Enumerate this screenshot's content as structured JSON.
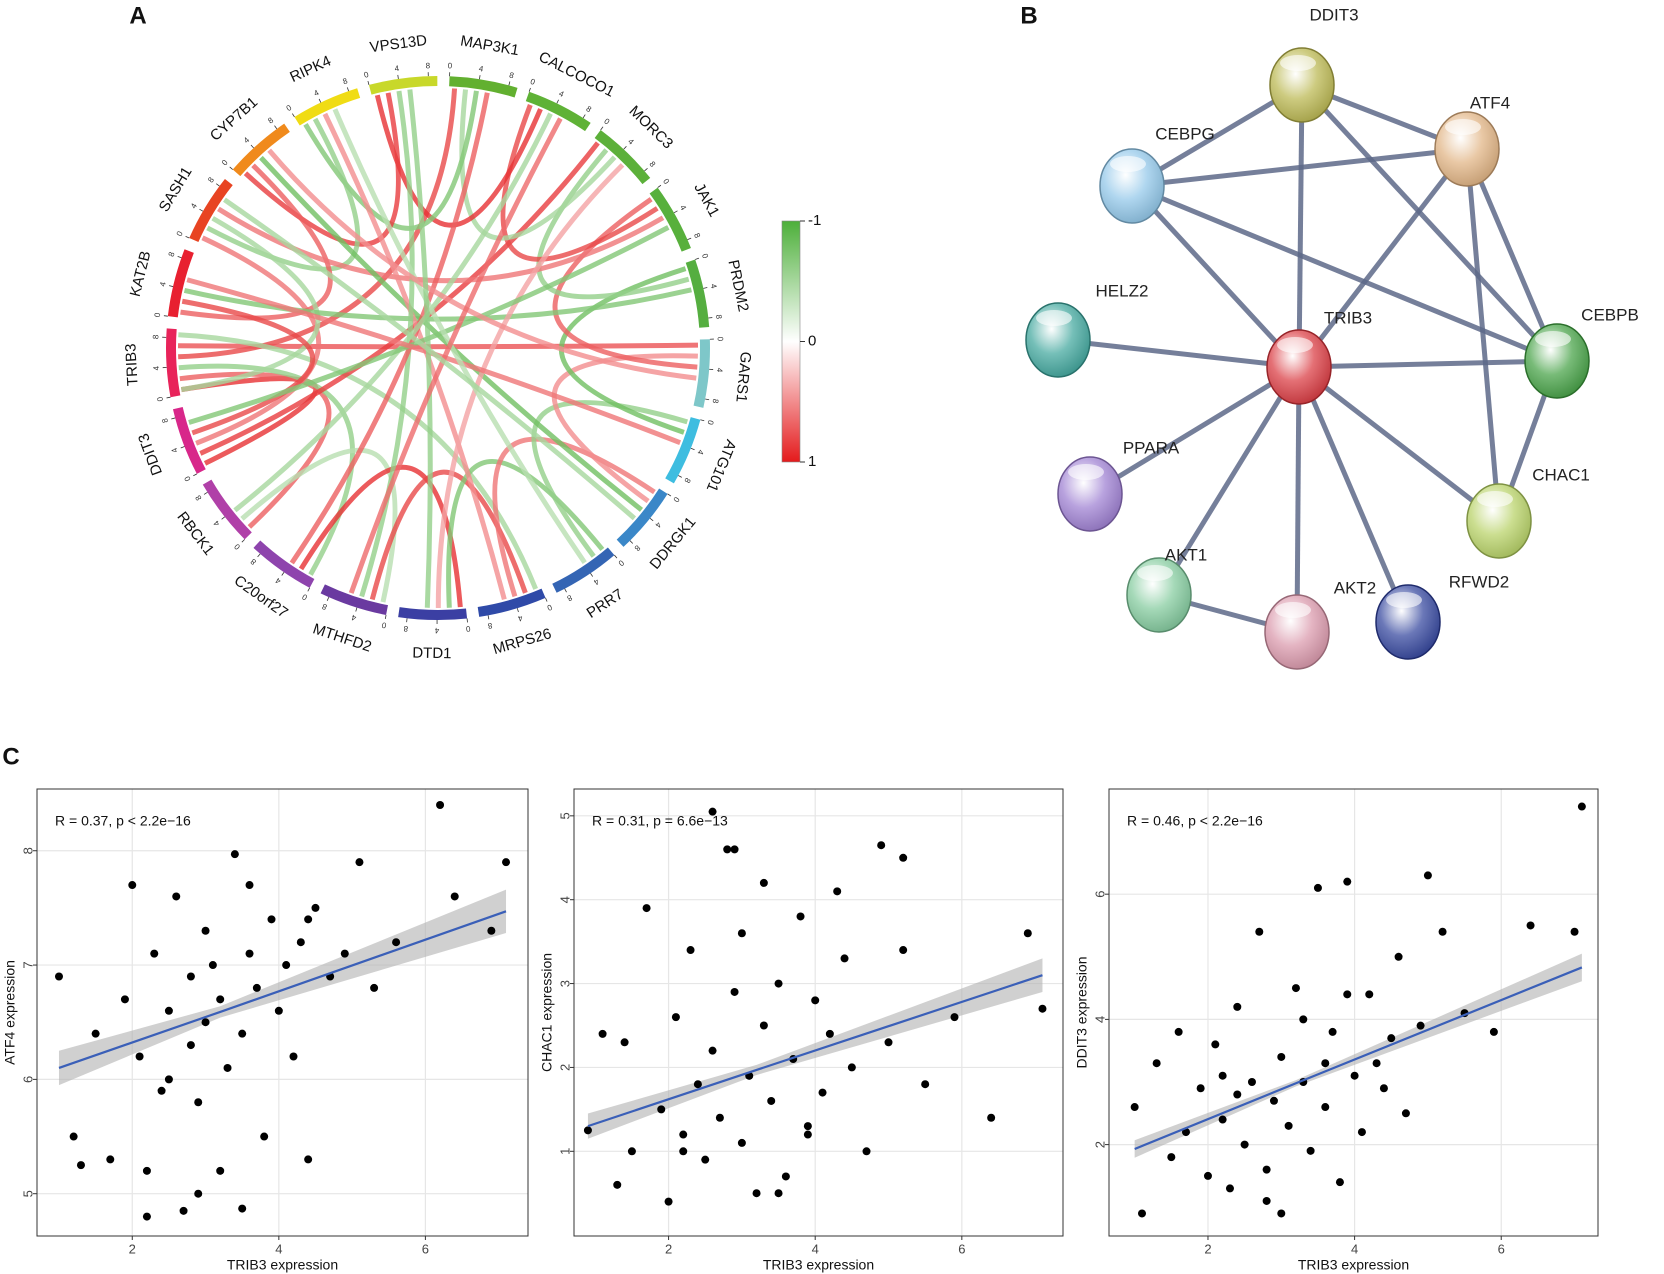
{
  "panel_labels": [
    "A",
    "B",
    "C"
  ],
  "chart_data": [
    {
      "type": "chord",
      "genes": [
        {
          "name": "MAP3K1",
          "color": "#62b030"
        },
        {
          "name": "CALCOCO1",
          "color": "#5fb236"
        },
        {
          "name": "MORC3",
          "color": "#5cb03a"
        },
        {
          "name": "JAK1",
          "color": "#58b03c"
        },
        {
          "name": "PRDM2",
          "color": "#55ae40"
        },
        {
          "name": "GARS1",
          "color": "#7ec7c9"
        },
        {
          "name": "ATG101",
          "color": "#3ebde0"
        },
        {
          "name": "DDRGK1",
          "color": "#3a87c8"
        },
        {
          "name": "PRR7",
          "color": "#3465b4"
        },
        {
          "name": "MRPS26",
          "color": "#2f4aa8"
        },
        {
          "name": "DTD1",
          "color": "#3b3fa3"
        },
        {
          "name": "MTHFD2",
          "color": "#6a3aa0"
        },
        {
          "name": "C20orf27",
          "color": "#8e44ad"
        },
        {
          "name": "RBCK1",
          "color": "#b040a8"
        },
        {
          "name": "DDIT3",
          "color": "#d8278a"
        },
        {
          "name": "TRIB3",
          "color": "#e8235a"
        },
        {
          "name": "KAT2B",
          "color": "#e82030"
        },
        {
          "name": "SASH1",
          "color": "#e84422"
        },
        {
          "name": "CYP7B1",
          "color": "#f08a1c"
        },
        {
          "name": "RIPK4",
          "color": "#f0dc14"
        },
        {
          "name": "VPS13D",
          "color": "#c8d82a"
        }
      ],
      "arc_ticks": [
        0,
        4,
        8
      ],
      "links": [
        {
          "from": 15,
          "to": 14,
          "r": 0.9
        },
        {
          "from": 15,
          "to": 13,
          "r": 0.7
        },
        {
          "from": 15,
          "to": 12,
          "r": -0.6
        },
        {
          "from": 15,
          "to": 0,
          "r": 0.8
        },
        {
          "from": 15,
          "to": 5,
          "r": 0.75
        },
        {
          "from": 15,
          "to": 9,
          "r": -0.5
        },
        {
          "from": 14,
          "to": 2,
          "r": 0.85
        },
        {
          "from": 14,
          "to": 17,
          "r": 0.6
        },
        {
          "from": 13,
          "to": 11,
          "r": -0.4
        },
        {
          "from": 12,
          "to": 10,
          "r": 0.9
        },
        {
          "from": 11,
          "to": 9,
          "r": 0.8
        },
        {
          "from": 10,
          "to": 8,
          "r": -0.7
        },
        {
          "from": 9,
          "to": 7,
          "r": 0.6
        },
        {
          "from": 8,
          "to": 6,
          "r": -0.6
        },
        {
          "from": 7,
          "to": 5,
          "r": 0.5
        },
        {
          "from": 6,
          "to": 4,
          "r": -0.8
        },
        {
          "from": 5,
          "to": 3,
          "r": 0.7
        },
        {
          "from": 4,
          "to": 2,
          "r": -0.6
        },
        {
          "from": 3,
          "to": 1,
          "r": 0.8
        },
        {
          "from": 2,
          "to": 0,
          "r": -0.5
        },
        {
          "from": 1,
          "to": 20,
          "r": 0.9
        },
        {
          "from": 0,
          "to": 19,
          "r": -0.7
        },
        {
          "from": 20,
          "to": 18,
          "r": 0.85
        },
        {
          "from": 19,
          "to": 17,
          "r": -0.6
        },
        {
          "from": 18,
          "to": 16,
          "r": 0.7
        },
        {
          "from": 17,
          "to": 15,
          "r": -0.5
        },
        {
          "from": 16,
          "to": 14,
          "r": 0.8
        },
        {
          "from": 16,
          "to": 4,
          "r": -0.7
        },
        {
          "from": 17,
          "to": 3,
          "r": 0.6
        },
        {
          "from": 18,
          "to": 7,
          "r": -0.8
        },
        {
          "from": 19,
          "to": 9,
          "r": 0.5
        },
        {
          "from": 20,
          "to": 11,
          "r": -0.6
        },
        {
          "from": 0,
          "to": 12,
          "r": 0.7
        },
        {
          "from": 1,
          "to": 13,
          "r": -0.5
        },
        {
          "from": 2,
          "to": 10,
          "r": 0.4
        },
        {
          "from": 3,
          "to": 14,
          "r": -0.7
        },
        {
          "from": 6,
          "to": 16,
          "r": 0.6
        },
        {
          "from": 8,
          "to": 19,
          "r": -0.4
        },
        {
          "from": 5,
          "to": 18,
          "r": 0.5
        },
        {
          "from": 10,
          "to": 20,
          "r": -0.6
        },
        {
          "from": 11,
          "to": 1,
          "r": 0.65
        },
        {
          "from": 7,
          "to": 17,
          "r": -0.5
        }
      ],
      "colorbar": {
        "lim": [
          -1,
          1
        ],
        "ticks": [
          -1,
          0,
          1
        ],
        "colors": [
          "#4daf3a",
          "#ffffff",
          "#e41a1c"
        ]
      }
    },
    {
      "type": "scatter",
      "annotation": "R = 0.37, p < 2.2e−16",
      "x_label": "TRIB3 expression",
      "y_label": "ATF4 expression",
      "xlim": [
        0.7,
        7.4
      ],
      "ylim": [
        4.63,
        8.54
      ],
      "xticks": [
        2,
        4,
        6
      ],
      "yticks": [
        5,
        6,
        7,
        8
      ],
      "grid": true,
      "series": [
        {
          "color": "#000000",
          "x": [
            1.0,
            1.2,
            1.5,
            1.7,
            1.9,
            2.0,
            2.1,
            2.2,
            2.3,
            2.4,
            2.5,
            2.5,
            2.6,
            2.7,
            2.8,
            2.8,
            2.9,
            3.0,
            3.0,
            3.1,
            3.2,
            3.2,
            3.3,
            3.4,
            3.5,
            3.5,
            3.6,
            3.7,
            3.8,
            3.9,
            4.0,
            4.1,
            4.2,
            4.3,
            4.4,
            4.5,
            4.7,
            4.9,
            5.1,
            5.3,
            5.6,
            6.2,
            6.4,
            6.9,
            7.1,
            2.2,
            2.9,
            3.6,
            1.3,
            4.4
          ],
          "values": [
            6.9,
            5.5,
            6.4,
            5.3,
            6.7,
            7.7,
            6.2,
            4.8,
            7.1,
            5.9,
            6.6,
            6.0,
            7.6,
            4.85,
            6.3,
            6.9,
            5.8,
            7.3,
            6.5,
            7.0,
            5.2,
            6.7,
            6.1,
            7.97,
            6.4,
            4.87,
            7.1,
            6.8,
            5.5,
            7.4,
            6.6,
            7.0,
            6.2,
            7.2,
            5.3,
            7.5,
            6.9,
            7.1,
            7.9,
            6.8,
            7.2,
            8.4,
            7.6,
            7.3,
            7.9,
            5.2,
            5.0,
            7.7,
            5.25,
            7.4
          ]
        }
      ],
      "fit": {
        "color": "#3a5fb8",
        "band_color": "#b0b0b0",
        "x": [
          1.0,
          3.2,
          7.1
        ],
        "values": [
          6.1,
          6.59,
          7.47
        ],
        "lower": [
          5.95,
          6.54,
          7.28
        ],
        "upper": [
          6.25,
          6.64,
          7.66
        ]
      }
    },
    {
      "type": "scatter",
      "annotation": "R = 0.31, p = 6.6e−13",
      "x_label": "TRIB3 expression",
      "y_label": "CHAC1 expression",
      "xlim": [
        0.71,
        7.38
      ],
      "ylim": [
        -0.01,
        5.32
      ],
      "xticks": [
        2,
        4,
        6
      ],
      "yticks": [
        1,
        2,
        3,
        4,
        5
      ],
      "grid": true,
      "series": [
        {
          "color": "#000000",
          "x": [
            0.9,
            1.1,
            1.3,
            1.5,
            1.7,
            1.9,
            2.0,
            2.1,
            2.2,
            2.3,
            2.4,
            2.5,
            2.6,
            2.7,
            2.8,
            2.9,
            3.0,
            3.0,
            3.1,
            3.2,
            3.3,
            3.3,
            3.4,
            3.5,
            3.6,
            3.7,
            3.8,
            3.9,
            4.0,
            4.1,
            4.2,
            4.3,
            4.5,
            4.7,
            4.9,
            5.0,
            5.2,
            5.2,
            5.5,
            5.9,
            6.4,
            6.9,
            7.1,
            2.6,
            3.5,
            1.4,
            4.4,
            2.9,
            3.9,
            2.2
          ],
          "values": [
            1.25,
            2.4,
            0.6,
            1.0,
            3.9,
            1.5,
            0.4,
            2.6,
            1.2,
            3.4,
            1.8,
            0.9,
            2.2,
            1.4,
            4.6,
            2.9,
            1.1,
            3.6,
            1.9,
            0.5,
            2.5,
            4.2,
            1.6,
            3.0,
            0.7,
            2.1,
            3.8,
            1.3,
            2.8,
            1.7,
            2.4,
            4.1,
            2.0,
            1.0,
            4.65,
            2.3,
            4.5,
            3.4,
            1.8,
            2.6,
            1.4,
            3.6,
            2.7,
            5.05,
            0.5,
            2.3,
            3.3,
            4.6,
            1.2,
            1.0
          ]
        }
      ],
      "fit": {
        "color": "#3a5fb8",
        "band_color": "#b0b0b0",
        "x": [
          0.9,
          3.2,
          7.1
        ],
        "values": [
          1.3,
          1.97,
          3.1
        ],
        "lower": [
          1.15,
          1.91,
          2.9
        ],
        "upper": [
          1.45,
          2.03,
          3.3
        ]
      }
    },
    {
      "type": "scatter",
      "annotation": "R = 0.46, p < 2.2e−16",
      "x_label": "TRIB3 expression",
      "y_label": "DDIT3 expression",
      "xlim": [
        0.65,
        7.32
      ],
      "ylim": [
        0.54,
        7.68
      ],
      "xticks": [
        2,
        4,
        6
      ],
      "yticks": [
        2,
        4,
        6
      ],
      "grid": true,
      "series": [
        {
          "color": "#000000",
          "x": [
            1.0,
            1.1,
            1.3,
            1.5,
            1.7,
            1.9,
            2.0,
            2.1,
            2.2,
            2.3,
            2.4,
            2.5,
            2.6,
            2.7,
            2.8,
            2.9,
            3.0,
            3.0,
            3.1,
            3.2,
            3.3,
            3.4,
            3.5,
            3.6,
            3.7,
            3.8,
            3.9,
            4.0,
            4.1,
            4.2,
            4.3,
            4.5,
            4.7,
            4.9,
            5.0,
            5.2,
            5.5,
            5.9,
            6.4,
            7.0,
            7.1,
            2.4,
            3.3,
            1.6,
            4.4,
            2.8,
            3.6,
            2.2,
            3.9,
            4.6
          ],
          "values": [
            2.6,
            0.9,
            3.3,
            1.8,
            2.2,
            2.9,
            1.5,
            3.6,
            2.4,
            1.3,
            4.2,
            2.0,
            3.0,
            5.4,
            1.1,
            2.7,
            3.4,
            0.9,
            2.3,
            4.5,
            3.0,
            1.9,
            6.1,
            2.6,
            3.8,
            1.4,
            6.2,
            3.1,
            2.2,
            4.4,
            3.3,
            3.7,
            2.5,
            3.9,
            6.3,
            5.4,
            4.1,
            3.8,
            5.5,
            5.4,
            7.4,
            2.8,
            4.0,
            3.8,
            2.9,
            1.6,
            3.3,
            3.1,
            4.4,
            5.0
          ]
        }
      ],
      "fit": {
        "color": "#3a5fb8",
        "band_color": "#b0b0b0",
        "x": [
          1.0,
          3.2,
          7.1
        ],
        "values": [
          1.93,
          2.98,
          4.83
        ],
        "lower": [
          1.79,
          2.93,
          4.61
        ],
        "upper": [
          2.07,
          3.03,
          5.05
        ]
      }
    }
  ],
  "network": {
    "nodes": [
      {
        "label": "DDIT3",
        "color": "#b8b44a"
      },
      {
        "label": "ATF4",
        "color": "#e0b07e"
      },
      {
        "label": "CEBPG",
        "color": "#8cc4e8"
      },
      {
        "label": "HELZ2",
        "color": "#3aa39a"
      },
      {
        "label": "TRIB3",
        "color": "#d8333a"
      },
      {
        "label": "CEBPB",
        "color": "#3e9e3e"
      },
      {
        "label": "PPARA",
        "color": "#9a7ad0"
      },
      {
        "label": "CHAC1",
        "color": "#b4d060"
      },
      {
        "label": "AKT1",
        "color": "#7ec89a"
      },
      {
        "label": "AKT2",
        "color": "#d894a8"
      },
      {
        "label": "RFWD2",
        "color": "#2c3e9a"
      }
    ],
    "edges": [
      [
        0,
        1
      ],
      [
        0,
        2
      ],
      [
        0,
        4
      ],
      [
        0,
        5
      ],
      [
        2,
        1
      ],
      [
        2,
        4
      ],
      [
        2,
        5
      ],
      [
        1,
        4
      ],
      [
        1,
        5
      ],
      [
        1,
        7
      ],
      [
        3,
        4
      ],
      [
        4,
        5
      ],
      [
        4,
        6
      ],
      [
        4,
        7
      ],
      [
        4,
        8
      ],
      [
        4,
        9
      ],
      [
        4,
        10
      ],
      [
        5,
        7
      ],
      [
        8,
        9
      ]
    ],
    "edge_color": "#5d6888"
  }
}
